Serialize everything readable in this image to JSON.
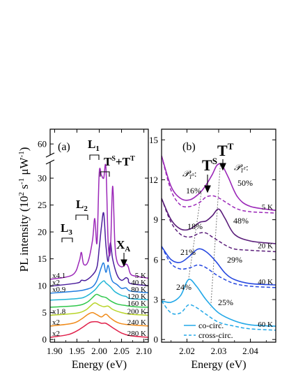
{
  "figure": {
    "ylabel": "PL intensity (10",
    "ylabel_sup1": "2",
    "ylabel_mid": " s",
    "ylabel_sup2": "-1",
    "ylabel_mid2": " μW",
    "ylabel_sup3": "-1",
    "ylabel_end": ")"
  },
  "chart_data": [
    {
      "panel": "(a)",
      "type": "line",
      "xlabel": "Energy (eV)",
      "xlim": [
        1.89,
        2.11
      ],
      "xticks": [
        "1.90",
        "1.95",
        "2.00",
        "2.05",
        "2.10"
      ],
      "ylim_lower": [
        -0.5,
        33
      ],
      "ylim_upper": [
        57,
        64
      ],
      "yticks_lower": [
        "0",
        "5",
        "10",
        "15",
        "20",
        "25",
        "30"
      ],
      "yticks_upper": [
        "60"
      ],
      "broken_axis": true,
      "annotations": [
        {
          "main": "L",
          "sub": "3"
        },
        {
          "main": "L",
          "sub": "2"
        },
        {
          "main": "L",
          "sub": "1"
        },
        {
          "main": "T",
          "sup": "S",
          "plus": "+",
          "main2": "T",
          "sup2": "T"
        },
        {
          "main": "X",
          "sub": "A"
        }
      ],
      "series": [
        {
          "temp": "5 K",
          "factor": "x4.1",
          "offset": 11.2,
          "color": "#9b27b8",
          "E": [
            1.89,
            1.94,
            1.955,
            1.96,
            1.965,
            1.975,
            1.985,
            1.99,
            1.995,
            2.0,
            2.005,
            2.01,
            2.015,
            2.02,
            2.025,
            2.03,
            2.035,
            2.04,
            2.05,
            2.06,
            2.065,
            2.07,
            2.08,
            2.11
          ],
          "y": [
            11.2,
            12.0,
            14.5,
            16.2,
            14.0,
            14.5,
            18.5,
            22.5,
            18.0,
            31.0,
            30.5,
            30.0,
            32.0,
            18.0,
            16.5,
            28.5,
            18.0,
            14.5,
            13.5,
            14.0,
            13.5,
            12.2,
            11.8,
            11.4
          ]
        },
        {
          "temp": "40 K",
          "factor": "x2",
          "offset": 9.9,
          "color": "#4a1d9c",
          "E": [
            1.89,
            1.95,
            1.96,
            1.97,
            1.985,
            1.995,
            2.0,
            2.005,
            2.01,
            2.015,
            2.02,
            2.025,
            2.03,
            2.04,
            2.05,
            2.06,
            2.065,
            2.07,
            2.11
          ],
          "y": [
            9.9,
            10.5,
            11.0,
            11.0,
            12.0,
            13.5,
            17.0,
            21.0,
            23.5,
            17.5,
            14.5,
            18.0,
            15.0,
            12.0,
            11.0,
            11.5,
            11.2,
            10.4,
            10.0
          ]
        },
        {
          "temp": "80 K",
          "factor": "x0.9",
          "offset": 8.6,
          "color": "#1f7be0",
          "E": [
            1.89,
            1.95,
            1.97,
            1.985,
            1.995,
            2.005,
            2.01,
            2.015,
            2.02,
            2.025,
            2.03,
            2.04,
            2.05,
            2.06,
            2.07,
            2.11
          ],
          "y": [
            8.6,
            9.0,
            9.3,
            9.8,
            11.0,
            13.5,
            14.2,
            12.5,
            13.8,
            12.0,
            10.8,
            10.2,
            9.5,
            9.6,
            9.0,
            8.7
          ]
        },
        {
          "temp": "120 K",
          "factor": "",
          "offset": 7.3,
          "color": "#1fb5d6",
          "E": [
            1.89,
            1.95,
            1.97,
            1.99,
            2.0,
            2.01,
            2.015,
            2.025,
            2.035,
            2.05,
            2.06,
            2.07,
            2.11
          ],
          "y": [
            7.3,
            7.6,
            8.0,
            9.2,
            10.2,
            10.9,
            10.5,
            9.8,
            8.9,
            8.2,
            8.0,
            7.6,
            7.4
          ]
        },
        {
          "temp": "160 K",
          "factor": "",
          "offset": 6.0,
          "color": "#2ec74a",
          "E": [
            1.89,
            1.95,
            1.97,
            1.98,
            1.99,
            1.995,
            2.005,
            2.015,
            2.025,
            2.04,
            2.06,
            2.08,
            2.11
          ],
          "y": [
            6.0,
            6.3,
            6.8,
            7.4,
            8.2,
            8.4,
            8.0,
            7.8,
            7.2,
            6.6,
            6.3,
            6.1,
            6.0
          ]
        },
        {
          "temp": "200 K",
          "factor": "x1.8",
          "offset": 4.5,
          "color": "#b8d428",
          "E": [
            1.89,
            1.95,
            1.97,
            1.98,
            1.99,
            2.0,
            2.01,
            2.02,
            2.03,
            2.05,
            2.07,
            2.11
          ],
          "y": [
            4.5,
            4.9,
            5.5,
            6.2,
            6.8,
            6.4,
            6.1,
            6.2,
            5.6,
            5.0,
            4.7,
            4.5
          ]
        },
        {
          "temp": "240 K",
          "factor": "x2",
          "offset": 2.5,
          "color": "#f08a18",
          "E": [
            1.89,
            1.94,
            1.96,
            1.975,
            1.985,
            1.995,
            2.005,
            2.015,
            2.025,
            2.04,
            2.06,
            2.11
          ],
          "y": [
            2.5,
            3.0,
            3.8,
            4.7,
            5.0,
            4.6,
            4.2,
            4.7,
            4.0,
            3.2,
            2.8,
            2.5
          ]
        },
        {
          "temp": "280 K",
          "factor": "x2",
          "offset": 0.4,
          "color": "#e0204a",
          "E": [
            1.89,
            1.93,
            1.95,
            1.965,
            1.98,
            1.995,
            2.005,
            2.015,
            2.03,
            2.05,
            2.07,
            2.11
          ],
          "y": [
            0.4,
            0.9,
            1.6,
            2.4,
            3.2,
            3.3,
            3.0,
            3.0,
            2.2,
            1.2,
            0.7,
            0.4
          ]
        }
      ]
    },
    {
      "panel": "(b)",
      "type": "line",
      "xlabel": "Energy (eV)",
      "xlim": [
        2.012,
        2.048
      ],
      "xticks": [
        "2.02",
        "2.03",
        "2.04"
      ],
      "ylim": [
        -0.2,
        15.8
      ],
      "yticks": [
        "0",
        "3",
        "6",
        "9",
        "12",
        "15"
      ],
      "labels": {
        "ts": "T",
        "ts_sup": "S",
        "tt": "T",
        "tt_sup": "T",
        "pts": "𝒫",
        "pts_sub": "T",
        "pts_subsup": "S",
        "ptt": "𝒫",
        "ptt_sub": "T",
        "ptt_subsup": "T",
        "colon": ":"
      },
      "legend": [
        {
          "label": "co-circ.",
          "style": "solid"
        },
        {
          "label": "cross-circ.",
          "style": "dashed"
        }
      ],
      "series": [
        {
          "temp": "5 K",
          "color": "#9b27b8",
          "pol_ts": "16%",
          "pol_tt": "50%",
          "E": [
            2.012,
            2.015,
            2.018,
            2.021,
            2.024,
            2.026,
            2.028,
            2.0295,
            2.031,
            2.033,
            2.036,
            2.04,
            2.048
          ],
          "co": [
            13.8,
            11.5,
            10.6,
            10.5,
            11.0,
            11.6,
            12.4,
            13.1,
            13.1,
            12.2,
            10.7,
            10.0,
            9.7
          ],
          "cross": [
            13.8,
            11.2,
            10.1,
            10.0,
            10.3,
            10.7,
            10.8,
            10.7,
            10.5,
            10.2,
            9.8,
            9.6,
            9.5
          ]
        },
        {
          "temp": "20 K",
          "color": "#5a1d7a",
          "pol_ts": "18%",
          "pol_tt": "48%",
          "E": [
            2.012,
            2.015,
            2.018,
            2.021,
            2.024,
            2.026,
            2.028,
            2.03,
            2.032,
            2.035,
            2.04,
            2.048
          ],
          "co": [
            10.6,
            9.0,
            8.3,
            8.3,
            8.8,
            8.9,
            9.3,
            9.8,
            9.1,
            7.9,
            7.4,
            7.2
          ],
          "cross": [
            10.6,
            8.8,
            7.9,
            7.7,
            8.0,
            8.0,
            7.7,
            7.4,
            7.1,
            6.8,
            6.7,
            6.6
          ]
        },
        {
          "temp": "40 K",
          "color": "#2648e0",
          "pol_ts": "21%",
          "pol_tt": "29%",
          "E": [
            2.012,
            2.015,
            2.018,
            2.021,
            2.0235,
            2.026,
            2.029,
            2.032,
            2.035,
            2.04,
            2.048
          ],
          "co": [
            7.0,
            6.0,
            5.8,
            6.3,
            6.8,
            6.6,
            5.9,
            5.0,
            4.5,
            4.2,
            4.1
          ],
          "cross": [
            7.0,
            5.7,
            5.3,
            5.4,
            5.6,
            5.4,
            4.9,
            4.5,
            4.2,
            4.0,
            3.9
          ]
        },
        {
          "temp": "60 K",
          "color": "#22a8e8",
          "pol_ts": "24%",
          "pol_tt": "25%",
          "E": [
            2.012,
            2.015,
            2.018,
            2.0205,
            2.023,
            2.026,
            2.03,
            2.035,
            2.04,
            2.048
          ],
          "co": [
            2.9,
            2.8,
            3.3,
            4.5,
            4.0,
            3.0,
            2.0,
            1.4,
            1.1,
            1.0
          ],
          "cross": [
            2.9,
            2.0,
            2.0,
            2.6,
            2.4,
            1.9,
            1.3,
            1.0,
            0.8,
            0.7
          ]
        }
      ]
    }
  ]
}
